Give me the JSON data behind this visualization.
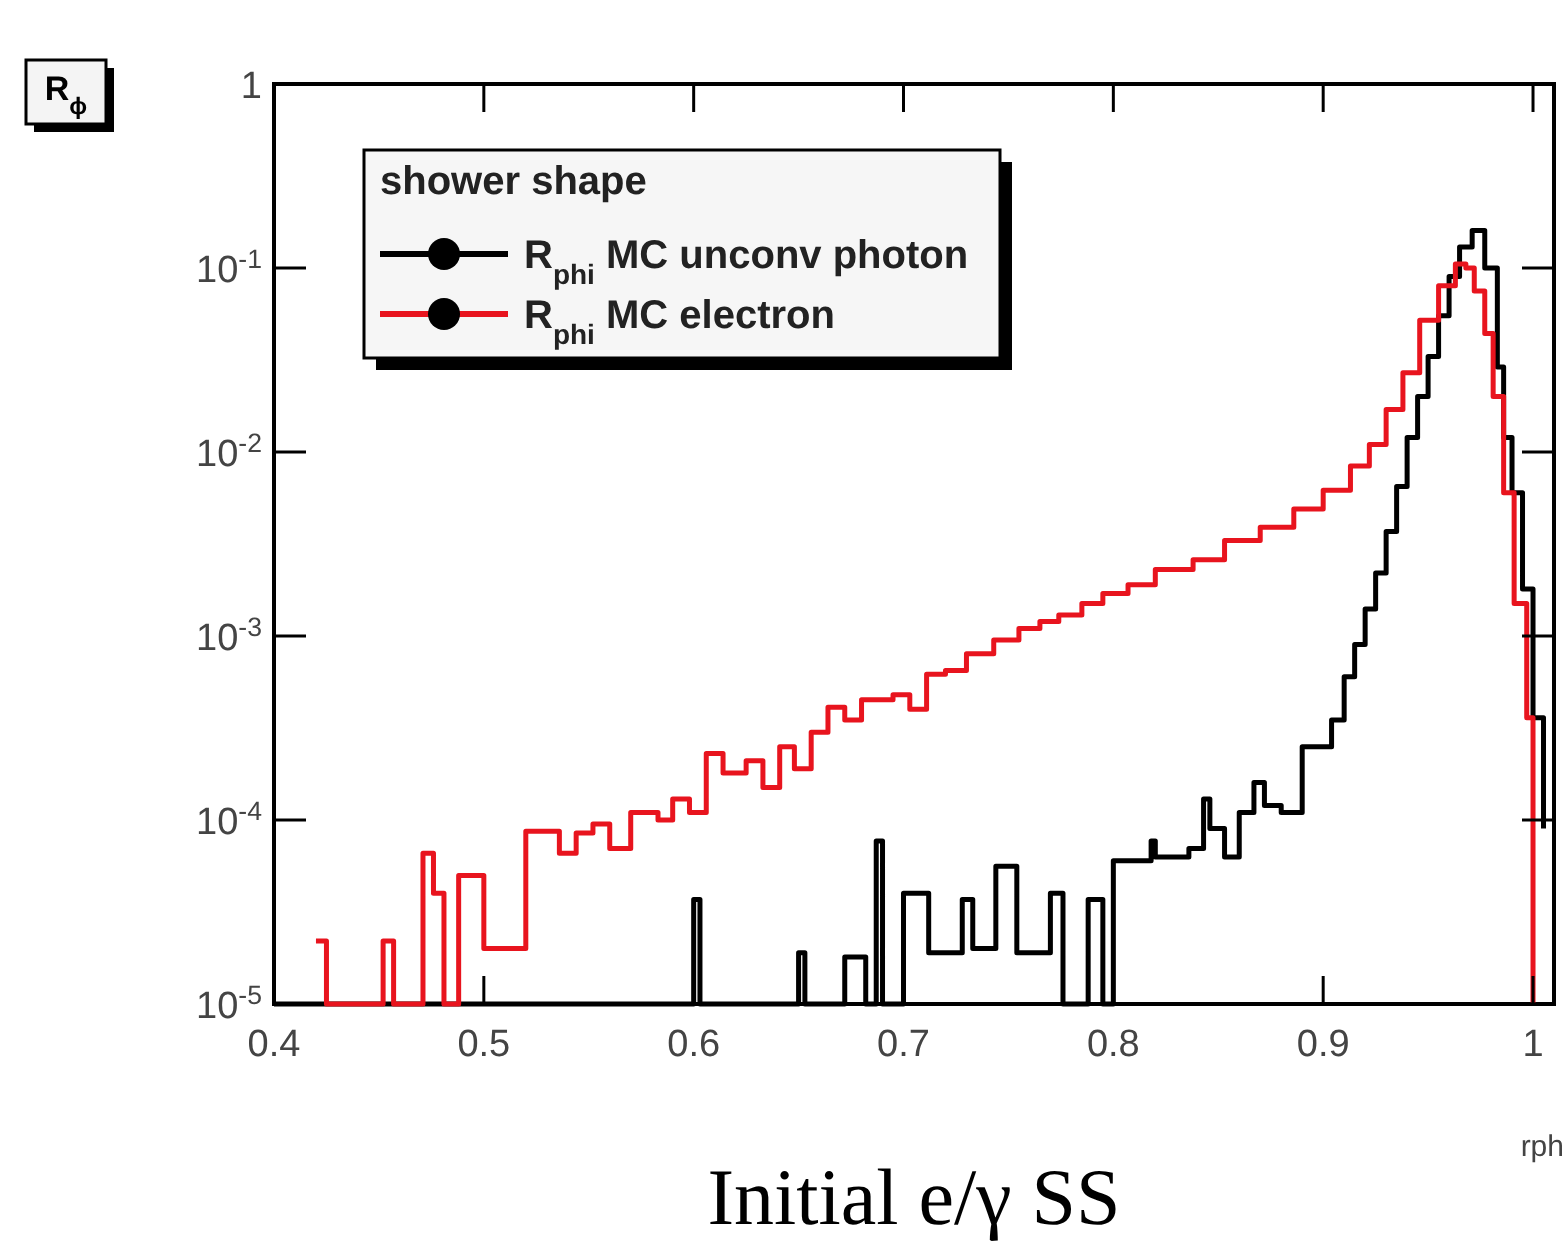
{
  "chart_data": {
    "type": "step",
    "title": "R$_{ϕ}$",
    "xlabel": "rph",
    "legend_title": "shower shape",
    "legend": "top left",
    "log": "y",
    "grid": false,
    "xlim": [
      0.4,
      1.01
    ],
    "xticks": [
      0.4,
      0.5,
      0.6,
      0.7,
      0.8,
      0.9,
      1
    ],
    "ylim": [
      1e-05,
      1
    ],
    "yticks": [
      {
        "value": 1e-05,
        "label": "10$^{-5}$"
      },
      {
        "value": 0.0001,
        "label": "10$^{-4}$"
      },
      {
        "value": 0.001,
        "label": "10$^{-3}$"
      },
      {
        "value": 0.01,
        "label": "10$^{-2}$"
      },
      {
        "value": 0.1,
        "label": "10$^{-1}$"
      },
      1
    ],
    "annotations": [
      "Initial e/γ SS"
    ],
    "series": [
      {
        "name": "R$_{phi}$ MC unconv photon",
        "color": "#000000",
        "x": [
          0.4,
          0.6,
          0.603,
          0.606,
          0.65,
          0.653,
          0.672,
          0.682,
          0.687,
          0.69,
          0.7,
          0.706,
          0.712,
          0.716,
          0.728,
          0.733,
          0.744,
          0.75,
          0.754,
          0.76,
          0.77,
          0.776,
          0.78,
          0.788,
          0.792,
          0.795,
          0.8,
          0.806,
          0.813,
          0.818,
          0.82,
          0.826,
          0.836,
          0.843,
          0.846,
          0.853,
          0.86,
          0.867,
          0.872,
          0.88,
          0.89,
          0.898,
          0.904,
          0.91,
          0.915,
          0.92,
          0.925,
          0.93,
          0.935,
          0.94,
          0.945,
          0.95,
          0.955,
          0.96,
          0.965,
          0.971,
          0.977,
          0.983,
          0.986,
          0.99,
          0.995,
          1.0,
          1.005
        ],
        "values": [
          1e-05,
          3.7e-05,
          1e-05,
          1e-05,
          1.9e-05,
          1e-05,
          1.8e-05,
          1e-05,
          7.7e-05,
          1e-05,
          4e-05,
          4e-05,
          1.9e-05,
          1.9e-05,
          3.7e-05,
          2e-05,
          5.6e-05,
          5.6e-05,
          1.9e-05,
          1.9e-05,
          4e-05,
          1e-05,
          1e-05,
          3.7e-05,
          3.7e-05,
          1e-05,
          6e-05,
          6e-05,
          6e-05,
          7.7e-05,
          6.3e-05,
          6.3e-05,
          7e-05,
          0.00013,
          9e-05,
          6.3e-05,
          0.00011,
          0.00016,
          0.00012,
          0.00011,
          0.00025,
          0.00025,
          0.00035,
          0.0006,
          0.0009,
          0.0014,
          0.0022,
          0.0037,
          0.0065,
          0.012,
          0.02,
          0.033,
          0.055,
          0.09,
          0.13,
          0.16,
          0.1,
          0.029,
          0.012,
          0.006,
          0.0018,
          0.00036,
          9e-05
        ]
      },
      {
        "name": "R$_{phi}$ MC electron",
        "color": "#e8141e",
        "x": [
          0.42,
          0.425,
          0.452,
          0.457,
          0.471,
          0.476,
          0.481,
          0.488,
          0.5,
          0.504,
          0.52,
          0.536,
          0.544,
          0.552,
          0.56,
          0.57,
          0.583,
          0.59,
          0.598,
          0.606,
          0.614,
          0.625,
          0.633,
          0.641,
          0.648,
          0.656,
          0.664,
          0.672,
          0.68,
          0.695,
          0.703,
          0.711,
          0.72,
          0.73,
          0.743,
          0.755,
          0.765,
          0.774,
          0.785,
          0.795,
          0.807,
          0.82,
          0.838,
          0.853,
          0.87,
          0.886,
          0.9,
          0.913,
          0.922,
          0.93,
          0.938,
          0.946,
          0.955,
          0.963,
          0.968,
          0.972,
          0.977,
          0.981,
          0.986,
          0.991,
          0.997,
          1.0
        ],
        "values": [
          2.2e-05,
          1e-05,
          2.2e-05,
          1e-05,
          6.6e-05,
          4e-05,
          1e-05,
          5e-05,
          2e-05,
          2e-05,
          8.7e-05,
          6.6e-05,
          8.5e-05,
          9.5e-05,
          7e-05,
          0.00011,
          0.0001,
          0.00013,
          0.00011,
          0.00023,
          0.00018,
          0.00021,
          0.00015,
          0.00025,
          0.00019,
          0.0003,
          0.00041,
          0.00035,
          0.00045,
          0.00048,
          0.0004,
          0.00062,
          0.00065,
          0.0008,
          0.00095,
          0.0011,
          0.0012,
          0.0013,
          0.0015,
          0.0017,
          0.0019,
          0.0023,
          0.0026,
          0.0033,
          0.0039,
          0.0049,
          0.0062,
          0.0084,
          0.011,
          0.017,
          0.027,
          0.052,
          0.08,
          0.105,
          0.1,
          0.075,
          0.044,
          0.02,
          0.006,
          0.0015,
          0.00036,
          1e-05
        ]
      }
    ]
  }
}
